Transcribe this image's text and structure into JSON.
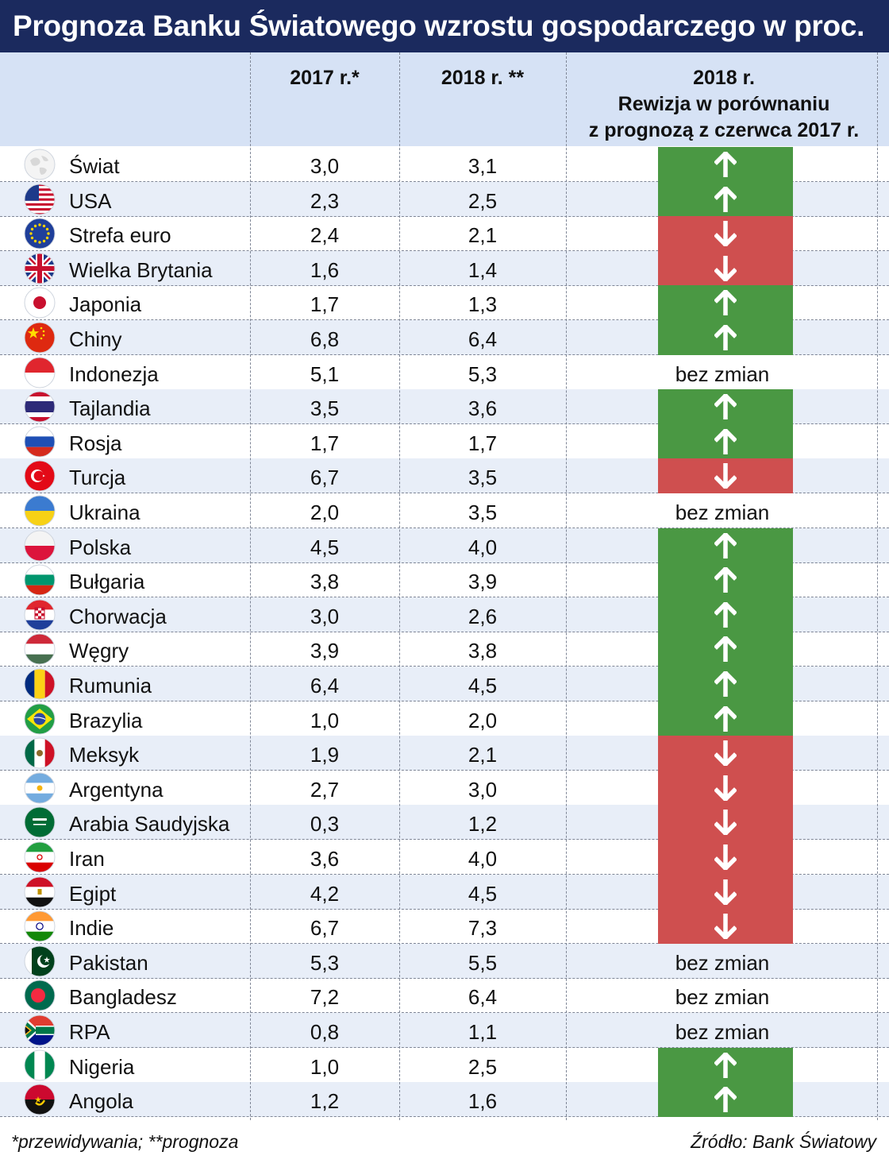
{
  "title": "Prognoza Banku Światowego wzrostu gospodarczego w proc.",
  "chart_data": {
    "type": "table",
    "columns": [
      "",
      "2017 r.*",
      "2018 r. **",
      "2018 r.\nRewizja w porównaniu\nz prognozą z czerwca 2017 r."
    ],
    "header_revision_lines": [
      "2018 r.",
      "Rewizja w porównaniu",
      "z prognozą z czerwca 2017 r."
    ],
    "no_change_label": "bez zmian",
    "rows": [
      {
        "country": "Świat",
        "flag": "world",
        "v2017": "3,0",
        "v2018": "3,1",
        "revision": "up"
      },
      {
        "country": "USA",
        "flag": "usa",
        "v2017": "2,3",
        "v2018": "2,5",
        "revision": "up"
      },
      {
        "country": "Strefa euro",
        "flag": "eu",
        "v2017": "2,4",
        "v2018": "2,1",
        "revision": "down"
      },
      {
        "country": "Wielka Brytania",
        "flag": "uk",
        "v2017": "1,6",
        "v2018": "1,4",
        "revision": "down"
      },
      {
        "country": "Japonia",
        "flag": "japan",
        "v2017": "1,7",
        "v2018": "1,3",
        "revision": "up"
      },
      {
        "country": "Chiny",
        "flag": "china",
        "v2017": "6,8",
        "v2018": "6,4",
        "revision": "up"
      },
      {
        "country": "Indonezja",
        "flag": "indonesia",
        "v2017": "5,1",
        "v2018": "5,3",
        "revision": "none"
      },
      {
        "country": "Tajlandia",
        "flag": "thailand",
        "v2017": "3,5",
        "v2018": "3,6",
        "revision": "up"
      },
      {
        "country": "Rosja",
        "flag": "russia",
        "v2017": "1,7",
        "v2018": "1,7",
        "revision": "up"
      },
      {
        "country": "Turcja",
        "flag": "turkey",
        "v2017": "6,7",
        "v2018": "3,5",
        "revision": "down"
      },
      {
        "country": "Ukraina",
        "flag": "ukraine",
        "v2017": "2,0",
        "v2018": "3,5",
        "revision": "none"
      },
      {
        "country": "Polska",
        "flag": "poland",
        "v2017": "4,5",
        "v2018": "4,0",
        "revision": "up"
      },
      {
        "country": "Bułgaria",
        "flag": "bulgaria",
        "v2017": "3,8",
        "v2018": "3,9",
        "revision": "up"
      },
      {
        "country": "Chorwacja",
        "flag": "croatia",
        "v2017": "3,0",
        "v2018": "2,6",
        "revision": "up"
      },
      {
        "country": "Węgry",
        "flag": "hungary",
        "v2017": "3,9",
        "v2018": "3,8",
        "revision": "up"
      },
      {
        "country": "Rumunia",
        "flag": "romania",
        "v2017": "6,4",
        "v2018": "4,5",
        "revision": "up"
      },
      {
        "country": "Brazylia",
        "flag": "brazil",
        "v2017": "1,0",
        "v2018": "2,0",
        "revision": "up"
      },
      {
        "country": "Meksyk",
        "flag": "mexico",
        "v2017": "1,9",
        "v2018": "2,1",
        "revision": "down"
      },
      {
        "country": "Argentyna",
        "flag": "argentina",
        "v2017": "2,7",
        "v2018": "3,0",
        "revision": "down"
      },
      {
        "country": "Arabia Saudyjska",
        "flag": "saudi",
        "v2017": "0,3",
        "v2018": "1,2",
        "revision": "down"
      },
      {
        "country": "Iran",
        "flag": "iran",
        "v2017": "3,6",
        "v2018": "4,0",
        "revision": "down"
      },
      {
        "country": "Egipt",
        "flag": "egypt",
        "v2017": "4,2",
        "v2018": "4,5",
        "revision": "down"
      },
      {
        "country": "Indie",
        "flag": "india",
        "v2017": "6,7",
        "v2018": "7,3",
        "revision": "down"
      },
      {
        "country": "Pakistan",
        "flag": "pakistan",
        "v2017": "5,3",
        "v2018": "5,5",
        "revision": "none"
      },
      {
        "country": "Bangladesz",
        "flag": "bangladesh",
        "v2017": "7,2",
        "v2018": "6,4",
        "revision": "none"
      },
      {
        "country": "RPA",
        "flag": "southafrica",
        "v2017": "0,8",
        "v2018": "1,1",
        "revision": "none"
      },
      {
        "country": "Nigeria",
        "flag": "nigeria",
        "v2017": "1,0",
        "v2018": "2,5",
        "revision": "up"
      },
      {
        "country": "Angola",
        "flag": "angola",
        "v2017": "1,2",
        "v2018": "1,6",
        "revision": "up"
      }
    ]
  },
  "colors": {
    "up": "#4a9843",
    "down": "#cf4f4f",
    "title_bg": "#1b2a5e",
    "header_bg": "#d6e2f5",
    "alt_row": "#e8eef8"
  },
  "footnote": "*przewidywania;  **prognoza",
  "source": "Źródło: Bank Światowy"
}
